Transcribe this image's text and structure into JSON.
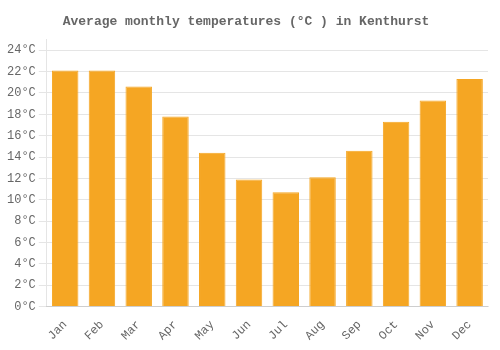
{
  "chart_data": {
    "type": "bar",
    "title": "Average monthly temperatures (°C ) in Kenthurst",
    "categories": [
      "Jan",
      "Feb",
      "Mar",
      "Apr",
      "May",
      "Jun",
      "Jul",
      "Aug",
      "Sep",
      "Oct",
      "Nov",
      "Dec"
    ],
    "values": [
      22.1,
      22.1,
      20.6,
      17.8,
      14.4,
      11.9,
      10.7,
      12.1,
      14.6,
      17.3,
      19.3,
      21.3
    ],
    "color": "#F5A623",
    "ylim": [
      0,
      25
    ],
    "yticks": [
      {
        "value": 0,
        "label": "0°C"
      },
      {
        "value": 2,
        "label": "2°C"
      },
      {
        "value": 4,
        "label": "4°C"
      },
      {
        "value": 6,
        "label": "6°C"
      },
      {
        "value": 8,
        "label": "8°C"
      },
      {
        "value": 10,
        "label": "10°C"
      },
      {
        "value": 12,
        "label": "12°C"
      },
      {
        "value": 14,
        "label": "14°C"
      },
      {
        "value": 16,
        "label": "16°C"
      },
      {
        "value": 18,
        "label": "18°C"
      },
      {
        "value": 20,
        "label": "20°C"
      },
      {
        "value": 22,
        "label": "22°C"
      },
      {
        "value": 24,
        "label": "24°C"
      }
    ],
    "grid": true
  }
}
